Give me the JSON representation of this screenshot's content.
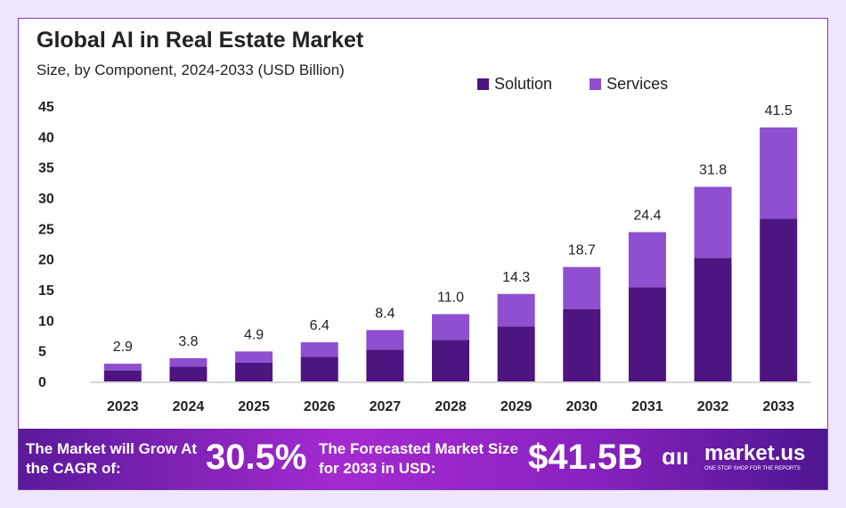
{
  "chart_data": {
    "type": "bar",
    "stacked": true,
    "title": "Global AI in Real Estate Market",
    "subtitle": "Size, by Component, 2024-2033 (USD Billion)",
    "categories": [
      "2023",
      "2024",
      "2025",
      "2026",
      "2027",
      "2028",
      "2029",
      "2030",
      "2031",
      "2032",
      "2033"
    ],
    "series": [
      {
        "name": "Solution",
        "color": "#4e1580",
        "values": [
          1.8,
          2.4,
          3.1,
          4.0,
          5.2,
          6.8,
          9.0,
          11.8,
          15.4,
          20.2,
          26.6
        ]
      },
      {
        "name": "Services",
        "color": "#8e4fd0",
        "values": [
          1.1,
          1.4,
          1.8,
          2.4,
          3.2,
          4.2,
          5.3,
          6.9,
          9.0,
          11.6,
          14.9
        ]
      }
    ],
    "totals": [
      "2.9",
      "3.8",
      "4.9",
      "6.4",
      "8.4",
      "11.0",
      "14.3",
      "18.7",
      "24.4",
      "31.8",
      "41.5"
    ],
    "yticks": [
      "0",
      "5",
      "10",
      "15",
      "20",
      "25",
      "30",
      "35",
      "40",
      "45"
    ],
    "ylim": [
      0,
      45
    ],
    "legend": "top-right",
    "grid": false
  },
  "banner": {
    "cagr_text": "The Market will Grow At the CAGR of:",
    "cagr": "30.5%",
    "forecast_text": "The Forecasted Market Size for 2033 in USD:",
    "forecast": "$41.5B",
    "brand": "market.us",
    "tagline": "ONE STOP SHOP FOR THE REPORTS"
  }
}
